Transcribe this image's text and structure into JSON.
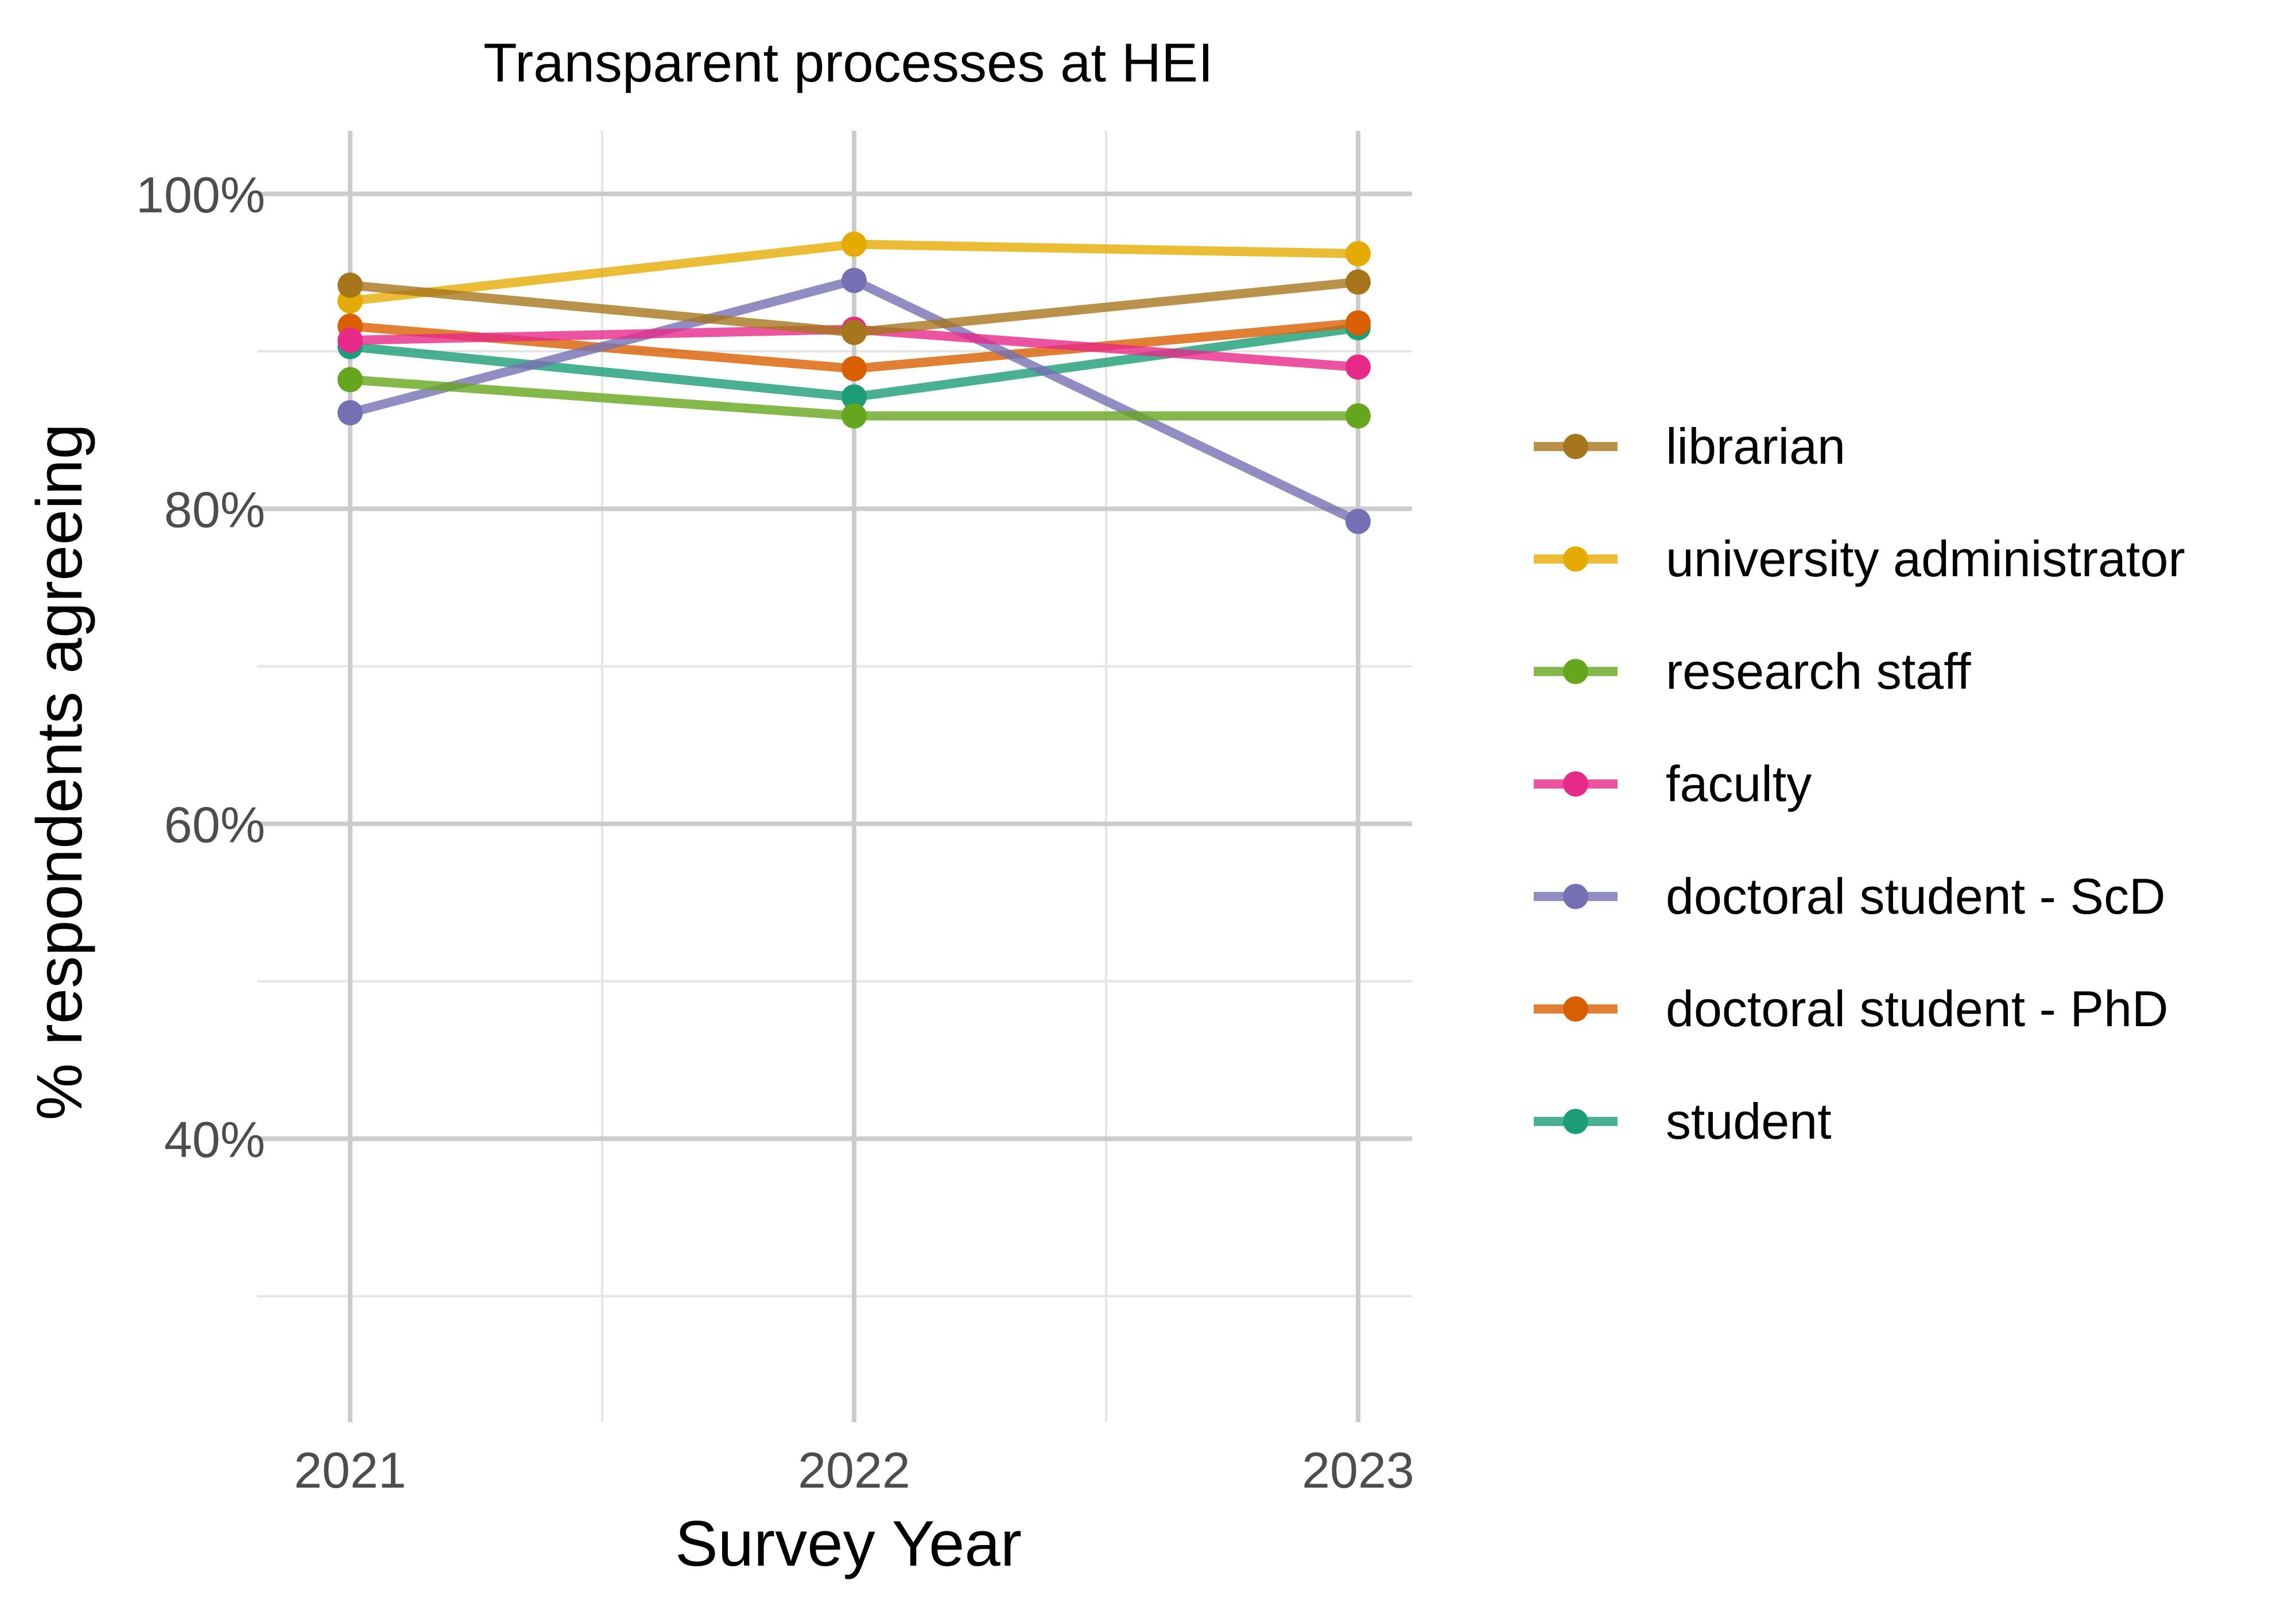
{
  "chart_data": {
    "type": "line",
    "title": "Transparent processes at HEI",
    "xlabel": "Survey Year",
    "ylabel": "% respondents agreeing",
    "x": [
      "2021",
      "2022",
      "2023"
    ],
    "ylim": [
      22,
      104
    ],
    "yticks": [
      40,
      60,
      80,
      100
    ],
    "ytick_labels": [
      "40%",
      "60%",
      "80%",
      "100%"
    ],
    "grid": true,
    "legend_position": "right",
    "series": [
      {
        "name": "librarian",
        "color": "#A6761D",
        "values": [
          94.2,
          91.2,
          94.4
        ]
      },
      {
        "name": "university administrator",
        "color": "#E6AB02",
        "values": [
          93.2,
          96.8,
          96.2
        ]
      },
      {
        "name": "research staff",
        "color": "#66A61E",
        "values": [
          88.2,
          85.9,
          85.9
        ]
      },
      {
        "name": "faculty",
        "color": "#E7298A",
        "values": [
          90.7,
          91.4,
          89.0
        ]
      },
      {
        "name": "doctoral student - ScD",
        "color": "#7570B3",
        "values": [
          86.1,
          94.5,
          79.2
        ]
      },
      {
        "name": "doctoral student - PhD",
        "color": "#D95F02",
        "values": [
          91.6,
          88.9,
          91.8
        ]
      },
      {
        "name": "student",
        "color": "#1B9E77",
        "values": [
          90.3,
          87.1,
          91.5
        ]
      }
    ]
  }
}
